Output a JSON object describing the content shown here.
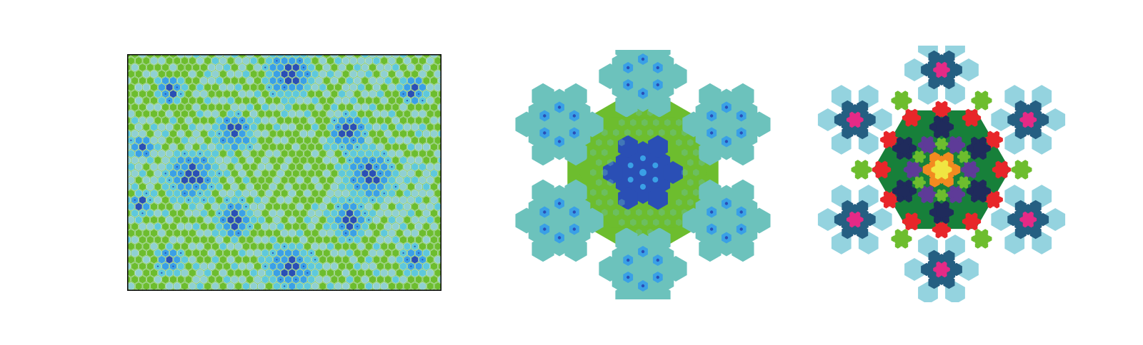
{
  "figure": {
    "panels": [
      {
        "id": "left",
        "kind": "rectangular tiling patch",
        "border": "#000000",
        "palette": {
          "green": "#6dbd2e",
          "cyan": "#5ec8dc",
          "sky": "#3aa0e6",
          "blue": "#2a4fb5",
          "pale": "#8fd0d2",
          "tile_edge": "#d9eef0"
        }
      },
      {
        "id": "middle",
        "kind": "hexagonal fractal tile",
        "palette": {
          "green": "#6dbd2e",
          "teal": "#6cc2bc",
          "sky": "#3aa0e6",
          "blue": "#2a4fb5",
          "dot": "#1a6fd6"
        }
      },
      {
        "id": "right",
        "kind": "colored fractal supertile",
        "palette": {
          "light": "#94d3df",
          "steel": "#255f82",
          "magenta": "#e52a86",
          "green": "#6dbd2e",
          "darkgreen": "#17803a",
          "red": "#e8262a",
          "navy": "#1f2b5c",
          "purple": "#5e3b98",
          "orange": "#f28a20",
          "yellow": "#f0e542"
        }
      }
    ]
  }
}
